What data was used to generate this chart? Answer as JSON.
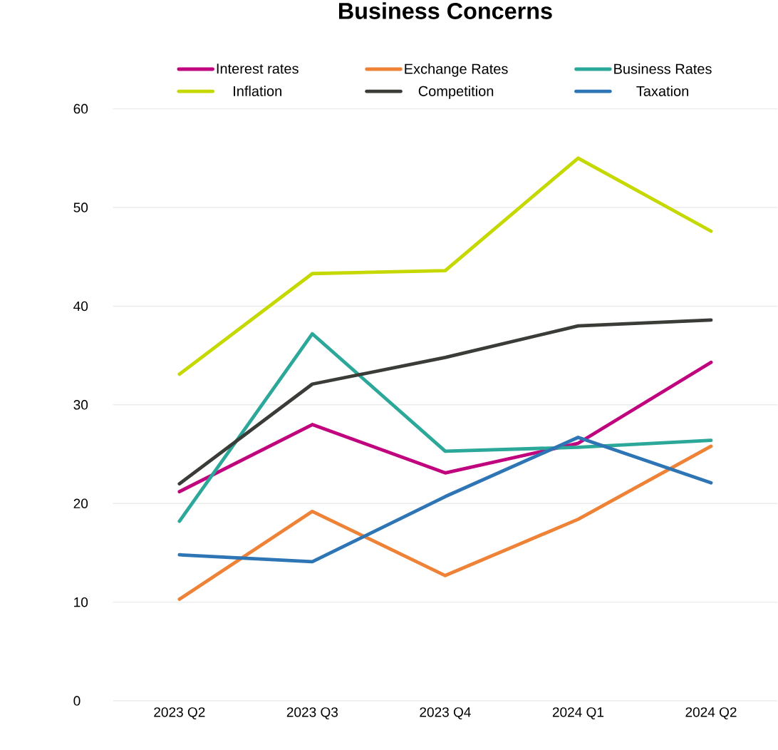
{
  "chart_data": {
    "type": "line",
    "title": "Business Concerns",
    "categories": [
      "2023 Q2",
      "2023 Q3",
      "2023 Q4",
      "2024 Q1",
      "2024 Q2"
    ],
    "series": [
      {
        "name": "Interest rates",
        "color": "#c0047e",
        "values": [
          21.2,
          28.0,
          23.1,
          26.1,
          34.3
        ]
      },
      {
        "name": "Exchange Rates",
        "color": "#ee8236",
        "values": [
          10.3,
          19.2,
          12.7,
          18.4,
          25.8
        ]
      },
      {
        "name": "Business Rates",
        "color": "#2ba89a",
        "values": [
          18.2,
          37.2,
          25.3,
          25.7,
          26.4
        ]
      },
      {
        "name": "Inflation",
        "color": "#c5d800",
        "values": [
          33.1,
          43.3,
          43.6,
          55.0,
          47.6
        ]
      },
      {
        "name": "Competition",
        "color": "#3a3c38",
        "values": [
          22.0,
          32.1,
          34.8,
          38.0,
          38.6
        ]
      },
      {
        "name": "Taxation",
        "color": "#2e75b6",
        "values": [
          14.8,
          14.1,
          20.7,
          26.7,
          22.1
        ]
      }
    ],
    "ylim": [
      0,
      60
    ],
    "yticks": [
      0,
      10,
      20,
      30,
      40,
      50,
      60
    ],
    "grid": "y",
    "legend": "top",
    "marker": "none",
    "line_style": "solid"
  }
}
